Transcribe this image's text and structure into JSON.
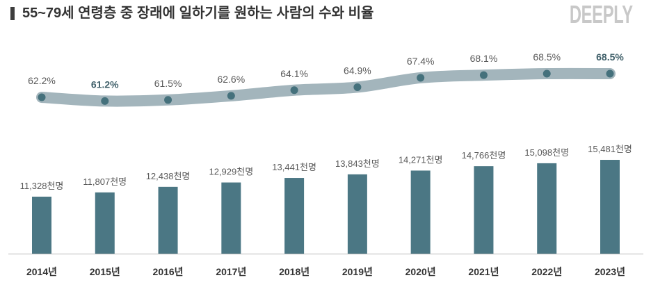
{
  "header": {
    "logo": "DEEPLY"
  },
  "colors": {
    "bar": "#4b7784",
    "line_band": "#a3b5bc",
    "point": "#45717c",
    "baseline": "#b8b8b8",
    "title_marker": "#3d3d3d",
    "logo": "#c8c8c8"
  },
  "chart_data": {
    "type": "bar",
    "title": "55~79세 연령층 중 장래에 일하기를 원하는 사람의 수와 비율",
    "categories": [
      "2014년",
      "2015년",
      "2016년",
      "2017년",
      "2018년",
      "2019년",
      "2020년",
      "2021년",
      "2022년",
      "2023년"
    ],
    "series": [
      {
        "type": "bar",
        "unit": "천명",
        "values": [
          11328,
          11807,
          12438,
          12929,
          13441,
          13843,
          14271,
          14766,
          15098,
          15481
        ],
        "labels": [
          "11,328천명",
          "11,807천명",
          "12,438천명",
          "12,929천명",
          "13,441천명",
          "13,843천명",
          "14,271천명",
          "14,766천명",
          "15,098천명",
          "15,481천명"
        ],
        "ylim": [
          4900,
          16000
        ]
      },
      {
        "type": "line",
        "unit": "%",
        "values": [
          62.2,
          61.2,
          61.5,
          62.6,
          64.1,
          64.9,
          67.4,
          68.1,
          68.5,
          68.5
        ],
        "labels": [
          "62.2%",
          "61.2%",
          "61.5%",
          "62.6%",
          "64.1%",
          "64.9%",
          "67.4%",
          "68.1%",
          "68.5%",
          "68.5%"
        ],
        "bold": [
          false,
          true,
          false,
          false,
          false,
          false,
          false,
          false,
          false,
          true
        ],
        "ylim": [
          51,
          78
        ]
      }
    ],
    "xlabel": "",
    "ylabel": "",
    "grid": false,
    "legend": "none"
  }
}
